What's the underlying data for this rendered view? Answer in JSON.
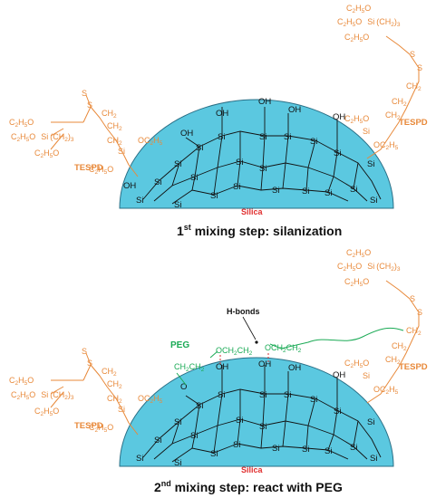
{
  "panel1": {
    "caption_num": "1",
    "caption_sup": "st",
    "caption_rest": " mixing step: silanization",
    "silica_label": "Silica",
    "tespd_left": "TESPD",
    "tespd_right": "TESPD"
  },
  "panel2": {
    "caption_num": "2",
    "caption_sup": "nd",
    "caption_rest": " mixing step: react with PEG",
    "silica_label": "Silica",
    "tespd_left": "TESPD",
    "tespd_right": "TESPD",
    "peg_label": "PEG",
    "hbonds_label": "H-bonds"
  },
  "atoms": {
    "si": "Si",
    "o": "O",
    "oh": "OH",
    "s": "S"
  },
  "colors": {
    "silica_fill": "#5bc8e0",
    "tespd": "#e8893a",
    "peg": "#1aaa55",
    "silica_label": "#e03030",
    "hbond": "#d03030"
  }
}
